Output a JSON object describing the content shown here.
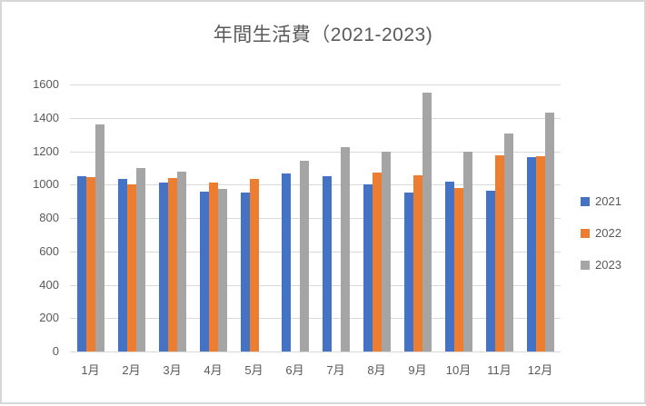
{
  "chart_data": {
    "type": "bar",
    "title": "年間生活費（2021-2023)",
    "categories": [
      "1月",
      "2月",
      "3月",
      "4月",
      "5月",
      "6月",
      "7月",
      "8月",
      "9月",
      "10月",
      "11月",
      "12月"
    ],
    "series": [
      {
        "name": "2021",
        "color": "#4472c4",
        "values": [
          1050,
          1035,
          1010,
          960,
          955,
          1065,
          1050,
          1000,
          955,
          1020,
          965,
          1165
        ]
      },
      {
        "name": "2022",
        "color": "#ed7d31",
        "values": [
          1045,
          1000,
          1040,
          1010,
          1035,
          null,
          null,
          1070,
          1055,
          980,
          1175,
          1170
        ]
      },
      {
        "name": "2023",
        "color": "#a5a5a5",
        "values": [
          1360,
          1100,
          1075,
          975,
          null,
          1145,
          1225,
          1200,
          1550,
          1195,
          1305,
          1430
        ]
      }
    ],
    "xlabel": "",
    "ylabel": "",
    "ylim": [
      0,
      1600
    ],
    "yticks": [
      0,
      200,
      400,
      600,
      800,
      1000,
      1200,
      1400,
      1600
    ],
    "grid": true,
    "legend_position": "right"
  },
  "colors": {
    "text": "#595959",
    "gridline": "#d9d9d9",
    "border": "#d7d7d7",
    "background": "#ffffff"
  }
}
